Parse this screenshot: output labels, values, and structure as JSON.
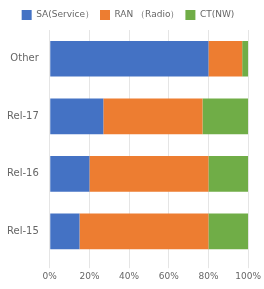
{
  "chart_data": {
    "type": "bar",
    "orientation": "horizontal",
    "stacked": true,
    "categories": [
      "Rel-15",
      "Rel-16",
      "Rel-17",
      "Other"
    ],
    "series": [
      {
        "name": "SA(Service）",
        "color": "#4472C4",
        "values": [
          15,
          20,
          27,
          80
        ]
      },
      {
        "name": "RAN （Radio）",
        "color": "#ED7D31",
        "values": [
          65,
          60,
          50,
          17
        ]
      },
      {
        "name": "CT(NW)",
        "color": "#70AD47",
        "values": [
          20,
          20,
          23,
          3
        ]
      }
    ],
    "xlim": [
      0,
      100
    ],
    "xticks": [
      {
        "value": 0,
        "label": "0%"
      },
      {
        "value": 20,
        "label": "20%"
      },
      {
        "value": 40,
        "label": "40%"
      },
      {
        "value": 60,
        "label": "60%"
      },
      {
        "value": 80,
        "label": "80%"
      },
      {
        "value": 100,
        "label": "100%"
      }
    ],
    "grid": true,
    "legend": "top"
  }
}
